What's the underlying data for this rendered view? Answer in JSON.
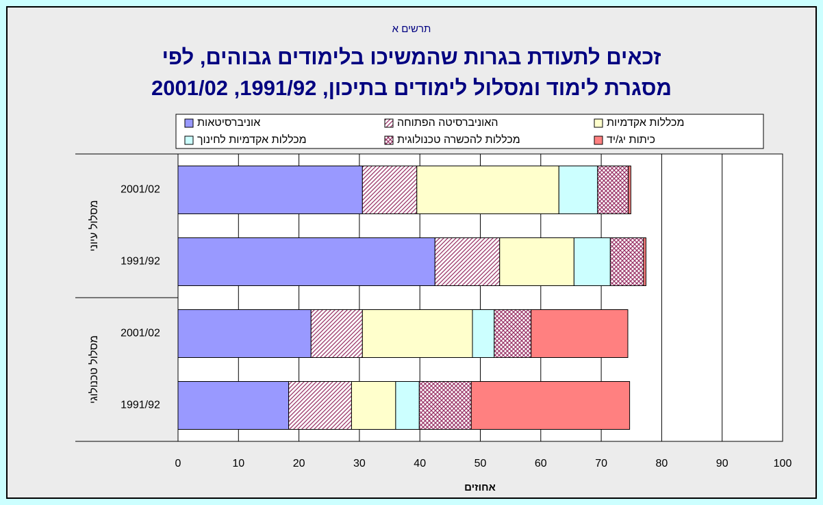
{
  "chart_data": {
    "type": "stacked-barh",
    "supertitle": "תרשים א",
    "title": [
      "זכאים לתעודת בגרות שהמשיכו בלימודים גבוהים, לפי",
      "מסגרת לימוד ומסלול לימודים בתיכון, 1991/92, 2001/02"
    ],
    "xlabel": "אחוזים",
    "groups": [
      {
        "name": "מסלול עיוני",
        "categories": [
          "2001/02",
          "1991/92"
        ]
      },
      {
        "name": "מסלול טכנולוגי",
        "categories": [
          "2001/02",
          "1991/92"
        ]
      }
    ],
    "series": [
      {
        "name": "אוניברסיטאות",
        "color": "#9999ff",
        "pattern": "solid",
        "values": [
          30.5,
          42.5,
          22,
          18.3
        ]
      },
      {
        "name": "האוניברסיטה הפתוחה",
        "color": "#993366",
        "pattern": "diagonal",
        "values": [
          9,
          10.7,
          8.5,
          10.4
        ]
      },
      {
        "name": "מכללות אקדמיות",
        "color": "#ffffcc",
        "pattern": "solid",
        "values": [
          23.5,
          12.3,
          18.2,
          7.3
        ]
      },
      {
        "name": "מכללות אקדמיות לחינוך",
        "color": "#ccffff",
        "pattern": "solid",
        "values": [
          6.4,
          6,
          3.6,
          3.9
        ]
      },
      {
        "name": "מכללות להכשרה טכנולוגית",
        "color": "#993366",
        "pattern": "cross",
        "values": [
          5.1,
          5.5,
          6.1,
          8.6
        ]
      },
      {
        "name": "כיתות יג/יד",
        "color": "#ff8080",
        "pattern": "solid",
        "values": [
          0.4,
          0.4,
          16,
          26.2
        ]
      }
    ],
    "xlim": [
      0,
      100
    ],
    "xticks": [
      0,
      10,
      20,
      30,
      40,
      50,
      60,
      70,
      80,
      90,
      100
    ],
    "grid": true
  }
}
